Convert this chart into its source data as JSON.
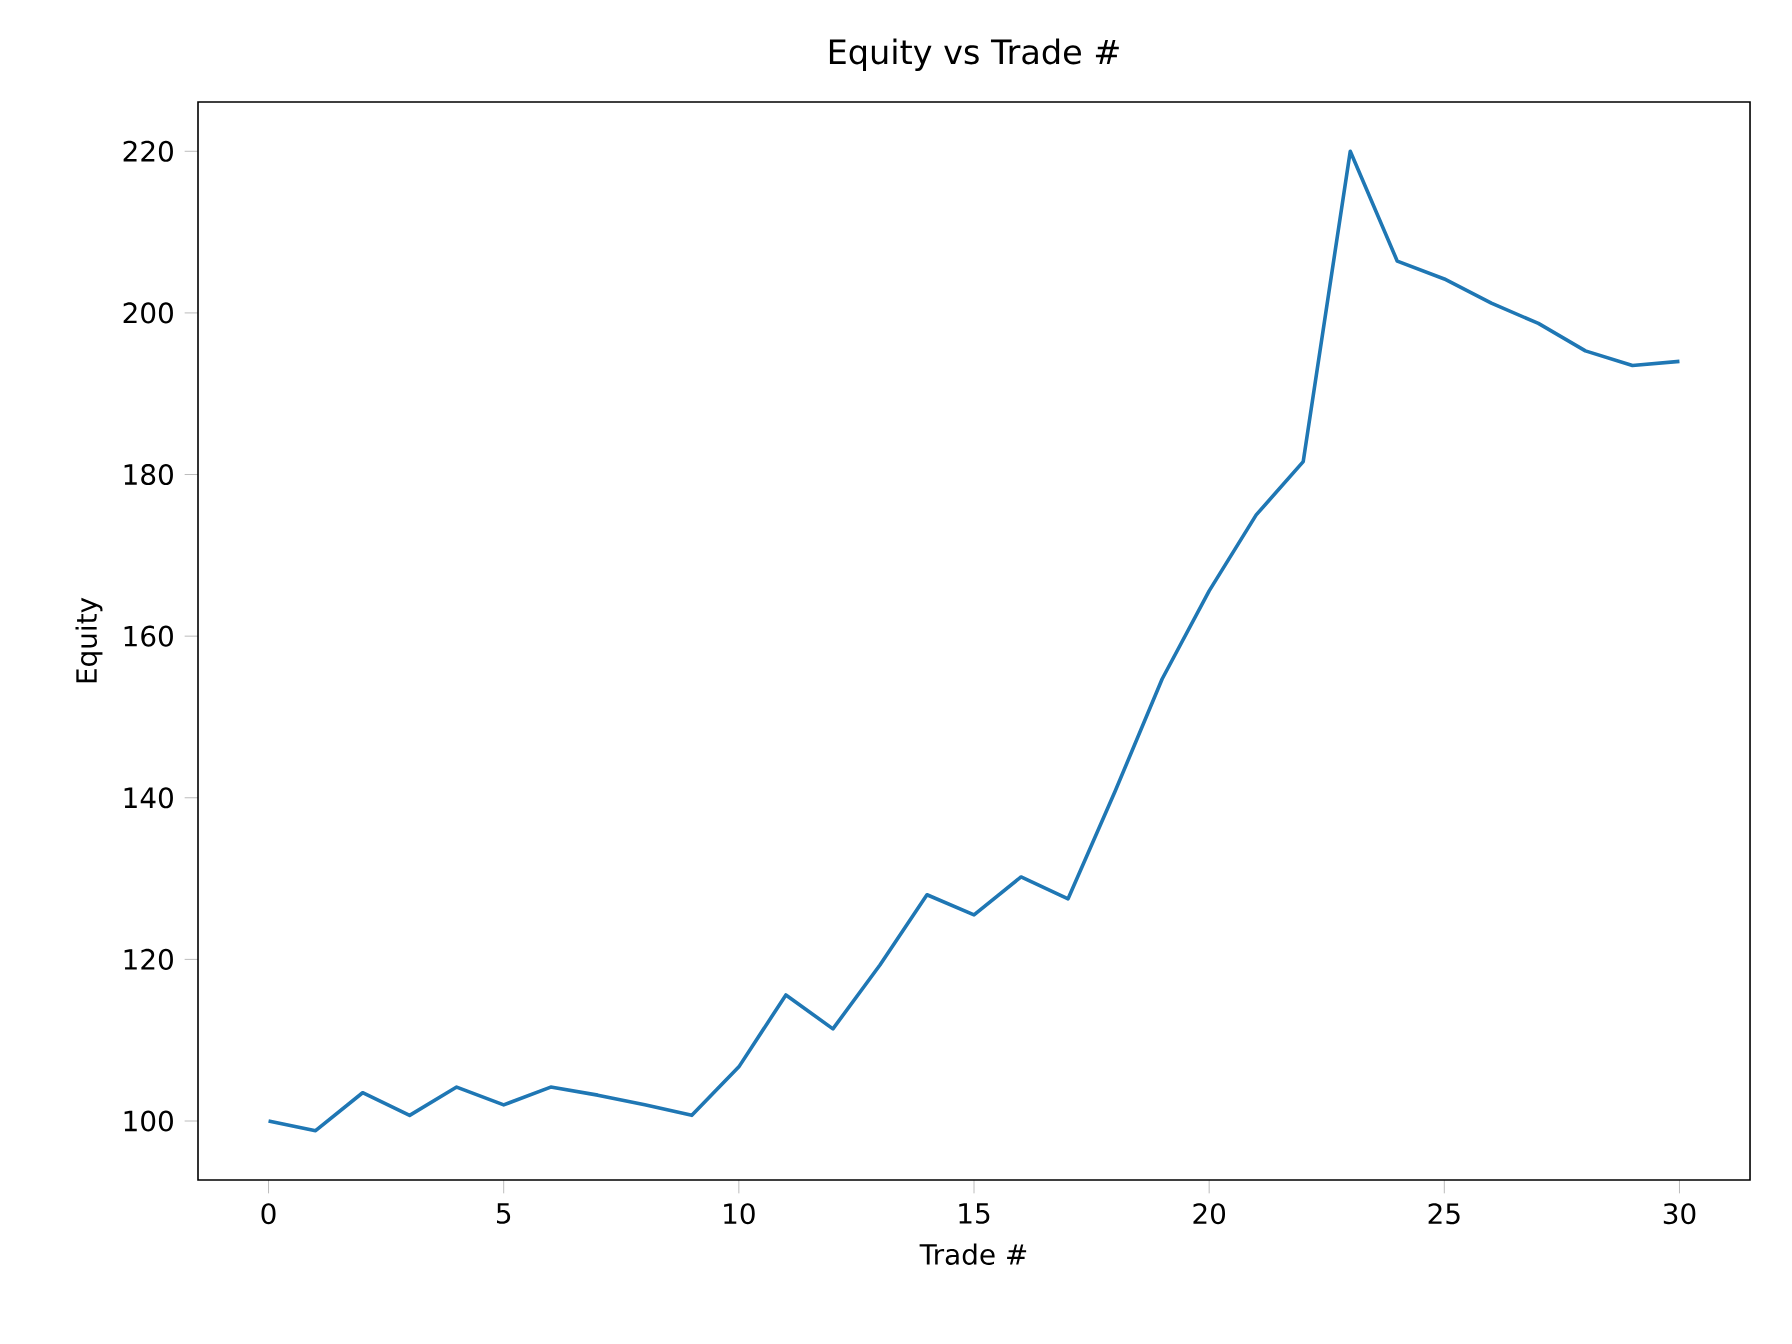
{
  "chart_data": {
    "type": "line",
    "title": "Equity vs Trade #",
    "xlabel": "Trade #",
    "ylabel": "Equity",
    "x": [
      0,
      1,
      2,
      3,
      4,
      5,
      6,
      7,
      8,
      9,
      10,
      11,
      12,
      13,
      14,
      15,
      16,
      17,
      18,
      19,
      20,
      21,
      22,
      23,
      24,
      25,
      26,
      27,
      28,
      29,
      30
    ],
    "series": [
      {
        "color": "#1f77b4",
        "values": [
          100,
          98.8,
          103.5,
          100.7,
          104.2,
          102,
          104.2,
          103.2,
          102,
          100.7,
          106.7,
          115.6,
          111.4,
          119.3,
          128,
          125.5,
          130.2,
          127.5,
          140.8,
          154.7,
          165.6,
          175,
          181.6,
          220,
          206.4,
          204.2,
          201.2,
          198.7,
          195.3,
          193.5,
          194
        ]
      }
    ],
    "xlim": [
      -1.5,
      31.5
    ],
    "ylim": [
      92.7,
      226.1
    ],
    "xticks": [
      0,
      5,
      10,
      15,
      20,
      25,
      30
    ],
    "yticks": [
      100,
      120,
      140,
      160,
      180,
      200,
      220
    ],
    "marker": "none",
    "line_style": "solid"
  }
}
